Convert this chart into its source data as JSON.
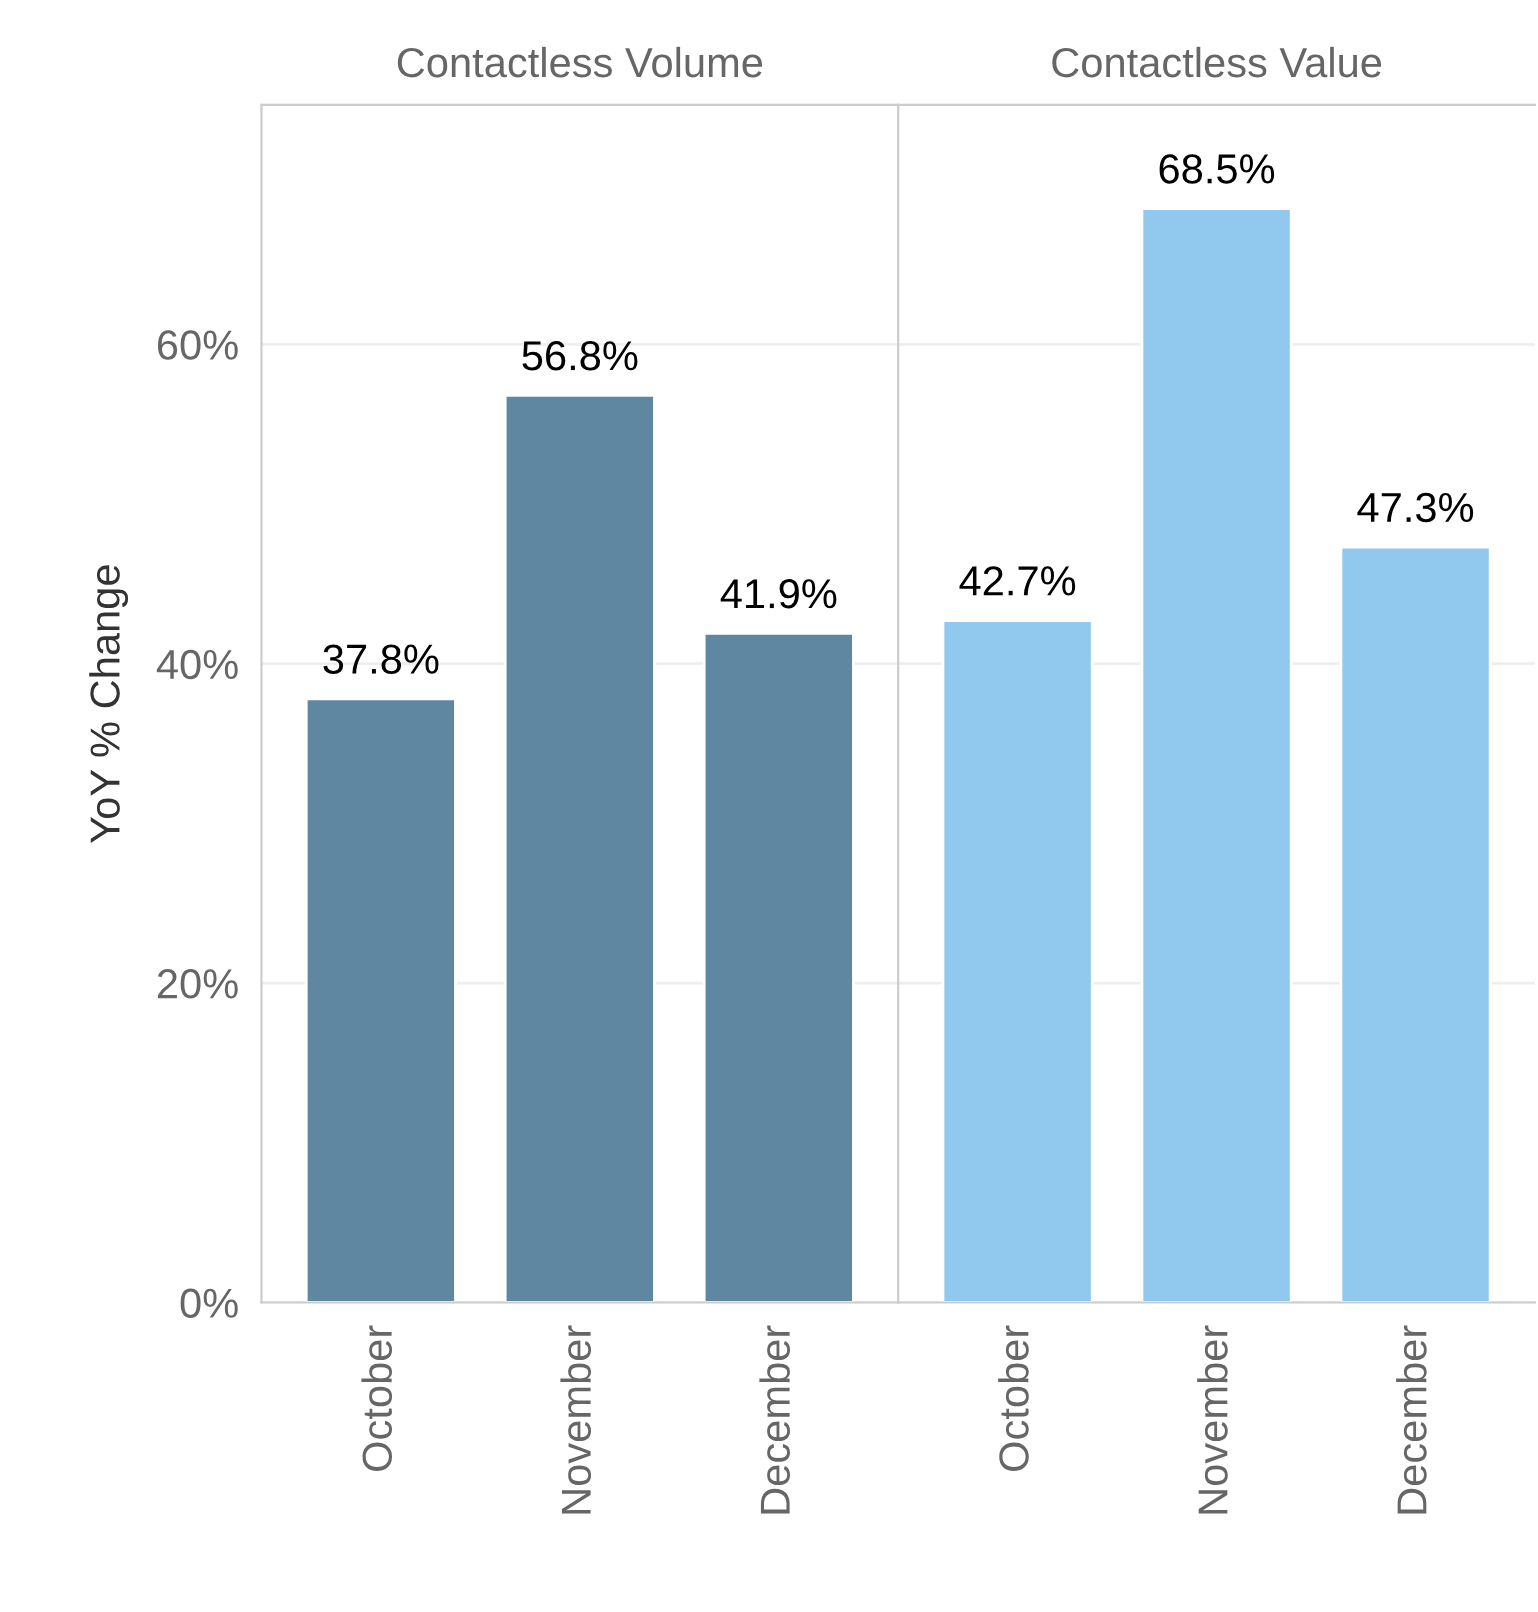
{
  "chart_data": [
    {
      "type": "bar",
      "title": "Contactless Volume",
      "ylabel": "YoY % Change",
      "categories": [
        "October",
        "November",
        "December"
      ],
      "series": [
        {
          "color": "#5f87a1",
          "values": [
            37.8,
            56.8,
            41.9
          ]
        }
      ],
      "value_labels": [
        "37.8%",
        "56.8%",
        "41.9%"
      ],
      "ylim": [
        0,
        75
      ],
      "yticks": [
        {
          "value": 0,
          "label": "0%"
        },
        {
          "value": 20,
          "label": "20%"
        },
        {
          "value": 40,
          "label": "40%"
        },
        {
          "value": 60,
          "label": "60%"
        }
      ],
      "grid": "y",
      "legend": false
    },
    {
      "type": "bar",
      "title": "Contactless Value",
      "categories": [
        "October",
        "November",
        "December"
      ],
      "series": [
        {
          "color": "#90c8ee",
          "values": [
            42.7,
            68.5,
            47.3
          ]
        }
      ],
      "value_labels": [
        "42.7%",
        "68.5%",
        "47.3%"
      ],
      "ylim": [
        0,
        75
      ],
      "yticks": [
        {
          "value": 0,
          "label": null
        },
        {
          "value": 20,
          "label": null
        },
        {
          "value": 40,
          "label": null
        },
        {
          "value": 60,
          "label": null
        }
      ],
      "grid": "y",
      "legend": false,
      "tick_labels": "x"
    }
  ]
}
